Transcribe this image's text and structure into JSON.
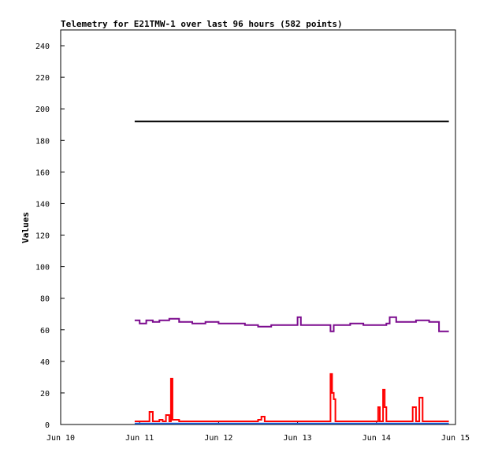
{
  "chart_data": {
    "type": "line",
    "title": "Telemetry for E21TMW-1 over last 96 hours (582 points)",
    "xlabel": "",
    "ylabel": "Values",
    "xlim": [
      "2024-06-10 00:00",
      "2024-06-15 00:00"
    ],
    "ylim": [
      0,
      250
    ],
    "x_ticks": [
      "Jun 10",
      "Jun 11",
      "Jun 12",
      "Jun 13",
      "Jun 14",
      "Jun 15"
    ],
    "y_ticks": [
      0,
      20,
      40,
      60,
      80,
      100,
      120,
      140,
      160,
      180,
      200,
      220,
      240
    ],
    "grid": false,
    "legend": "none",
    "series": [
      {
        "color": "#000000",
        "points": [
          [
            "2024-06-10 22:30",
            192
          ],
          [
            "2024-06-14 22:00",
            192
          ]
        ]
      },
      {
        "color": "#7b0a8e",
        "points": [
          [
            "2024-06-10 22:30",
            66
          ],
          [
            "2024-06-11 00:00",
            64
          ],
          [
            "2024-06-11 02:00",
            66
          ],
          [
            "2024-06-11 04:00",
            65
          ],
          [
            "2024-06-11 06:00",
            66
          ],
          [
            "2024-06-11 09:00",
            67
          ],
          [
            "2024-06-11 12:00",
            65
          ],
          [
            "2024-06-11 16:00",
            64
          ],
          [
            "2024-06-11 20:00",
            65
          ],
          [
            "2024-06-12 00:00",
            64
          ],
          [
            "2024-06-12 04:00",
            64
          ],
          [
            "2024-06-12 08:00",
            63
          ],
          [
            "2024-06-12 12:00",
            62
          ],
          [
            "2024-06-12 16:00",
            63
          ],
          [
            "2024-06-12 20:00",
            63
          ],
          [
            "2024-06-13 00:00",
            68
          ],
          [
            "2024-06-13 01:00",
            63
          ],
          [
            "2024-06-13 06:00",
            63
          ],
          [
            "2024-06-13 10:00",
            59
          ],
          [
            "2024-06-13 11:00",
            63
          ],
          [
            "2024-06-13 16:00",
            64
          ],
          [
            "2024-06-13 20:00",
            63
          ],
          [
            "2024-06-14 00:00",
            63
          ],
          [
            "2024-06-14 03:00",
            64
          ],
          [
            "2024-06-14 04:00",
            68
          ],
          [
            "2024-06-14 06:00",
            65
          ],
          [
            "2024-06-14 10:00",
            65
          ],
          [
            "2024-06-14 12:00",
            66
          ],
          [
            "2024-06-14 16:00",
            65
          ],
          [
            "2024-06-14 18:30",
            65
          ],
          [
            "2024-06-14 19:00",
            59
          ],
          [
            "2024-06-14 22:00",
            59
          ]
        ]
      },
      {
        "color": "#ff0000",
        "points": [
          [
            "2024-06-10 22:30",
            2
          ],
          [
            "2024-06-11 02:00",
            2
          ],
          [
            "2024-06-11 03:00",
            8
          ],
          [
            "2024-06-11 04:00",
            2
          ],
          [
            "2024-06-11 06:00",
            3
          ],
          [
            "2024-06-11 07:00",
            2
          ],
          [
            "2024-06-11 08:00",
            6
          ],
          [
            "2024-06-11 09:00",
            2
          ],
          [
            "2024-06-11 09:30",
            29
          ],
          [
            "2024-06-11 10:00",
            3
          ],
          [
            "2024-06-11 12:00",
            2
          ],
          [
            "2024-06-12 04:00",
            2
          ],
          [
            "2024-06-12 12:00",
            3
          ],
          [
            "2024-06-12 13:00",
            5
          ],
          [
            "2024-06-12 14:00",
            2
          ],
          [
            "2024-06-13 08:00",
            2
          ],
          [
            "2024-06-13 10:00",
            32
          ],
          [
            "2024-06-13 10:30",
            20
          ],
          [
            "2024-06-13 11:00",
            16
          ],
          [
            "2024-06-13 11:30",
            2
          ],
          [
            "2024-06-14 00:00",
            2
          ],
          [
            "2024-06-14 00:30",
            11
          ],
          [
            "2024-06-14 01:00",
            2
          ],
          [
            "2024-06-14 02:00",
            22
          ],
          [
            "2024-06-14 02:30",
            11
          ],
          [
            "2024-06-14 03:00",
            2
          ],
          [
            "2024-06-14 10:00",
            2
          ],
          [
            "2024-06-14 11:00",
            11
          ],
          [
            "2024-06-14 12:00",
            2
          ],
          [
            "2024-06-14 13:00",
            17
          ],
          [
            "2024-06-14 14:00",
            2
          ],
          [
            "2024-06-14 22:00",
            2
          ]
        ]
      },
      {
        "color": "#1f5fd6",
        "points": [
          [
            "2024-06-10 22:30",
            0.6
          ],
          [
            "2024-06-14 22:00",
            0.6
          ]
        ]
      }
    ]
  }
}
